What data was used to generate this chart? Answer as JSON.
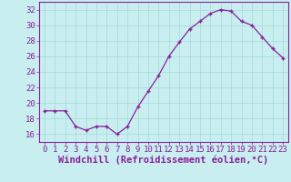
{
  "x": [
    0,
    1,
    2,
    3,
    4,
    5,
    6,
    7,
    8,
    9,
    10,
    11,
    12,
    13,
    14,
    15,
    16,
    17,
    18,
    19,
    20,
    21,
    22,
    23
  ],
  "y": [
    19.0,
    19.0,
    19.0,
    17.0,
    16.5,
    17.0,
    17.0,
    16.0,
    17.0,
    19.5,
    21.5,
    23.5,
    26.0,
    27.8,
    29.5,
    30.5,
    31.5,
    32.0,
    31.8,
    30.5,
    30.0,
    28.5,
    27.0,
    25.8
  ],
  "line_color": "#882299",
  "marker": "+",
  "bg_color": "#c8eef0",
  "grid_color": "#a8d8da",
  "tick_color": "#882299",
  "xlabel": "Windchill (Refroidissement éolien,°C)",
  "ylim_min": 15.0,
  "ylim_max": 33.0,
  "yticks": [
    16,
    18,
    20,
    22,
    24,
    26,
    28,
    30,
    32
  ],
  "xticks": [
    0,
    1,
    2,
    3,
    4,
    5,
    6,
    7,
    8,
    9,
    10,
    11,
    12,
    13,
    14,
    15,
    16,
    17,
    18,
    19,
    20,
    21,
    22,
    23
  ],
  "xlabel_color": "#882299",
  "tick_label_color": "#882299",
  "spine_color": "#882299",
  "font_size_label": 6.5,
  "font_size_tick": 6.5,
  "font_size_xlabel": 7.5
}
